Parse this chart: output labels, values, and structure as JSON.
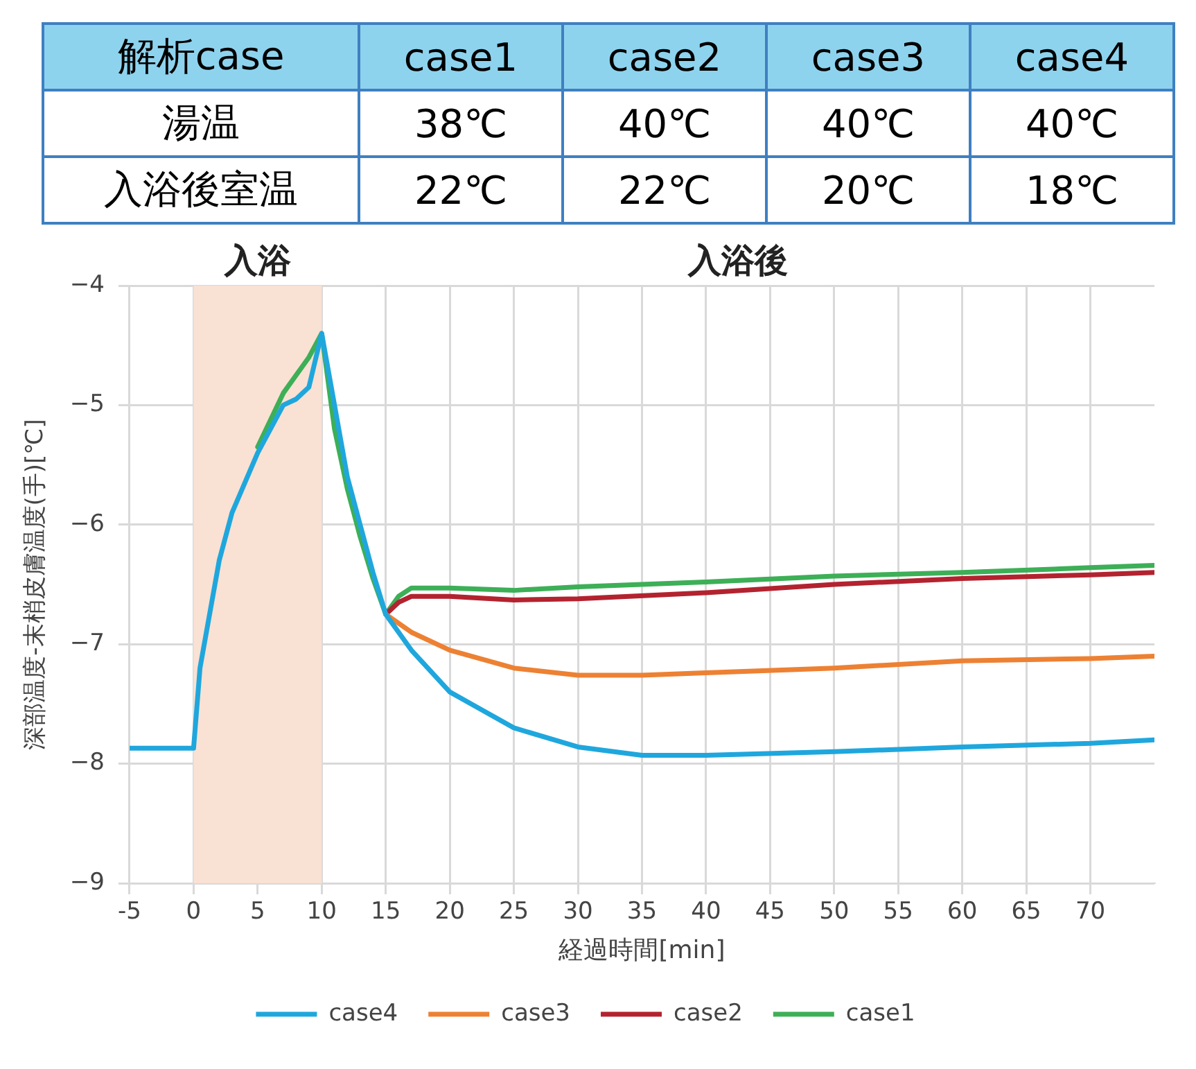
{
  "chart_data": [
    {
      "type": "other",
      "title": "解析case",
      "categories": [
        "case1",
        "case2",
        "case3",
        "case4"
      ],
      "y_categories": [
        "湯温",
        "入浴後室温"
      ],
      "cell_labels": [
        [
          "38℃",
          "40℃",
          "40℃",
          "40℃"
        ],
        [
          "22℃",
          "22℃",
          "20℃",
          "18℃"
        ]
      ]
    },
    {
      "type": "line",
      "xlabel": "経過時間[min]",
      "ylabel": "深部温度-末梢皮膚温度(手)[℃]",
      "xlim": [
        -5,
        75
      ],
      "xticks": [
        -5,
        0,
        5,
        10,
        15,
        20,
        25,
        30,
        35,
        40,
        45,
        50,
        55,
        60,
        65,
        70
      ],
      "ylim": [
        -9,
        -4
      ],
      "yticks": [
        {
          "value": -9,
          "label": "−9"
        },
        {
          "value": -8,
          "label": "−8"
        },
        {
          "value": -7,
          "label": "−7"
        },
        {
          "value": -6,
          "label": "−6"
        },
        {
          "value": -5,
          "label": "−5"
        },
        {
          "value": -4,
          "label": "−4"
        }
      ],
      "grid": true,
      "legend": "bottom",
      "marker": "none",
      "line_style": "solid",
      "bands": [
        {
          "axis": "x",
          "from": 0,
          "to": 10,
          "label": "入浴",
          "color": "#f9e1d3"
        }
      ],
      "annotations": [
        "入浴後"
      ],
      "series": [
        {
          "name": "case1",
          "color": "#3daf57",
          "x": [
            5,
            7,
            8,
            9,
            10,
            11,
            12,
            13,
            14,
            15,
            16,
            17,
            20,
            25,
            30,
            40,
            50,
            60,
            70,
            75
          ],
          "values": [
            -5.35,
            -4.9,
            -4.75,
            -4.6,
            -4.4,
            -5.2,
            -5.7,
            -6.1,
            -6.45,
            -6.75,
            -6.6,
            -6.53,
            -6.53,
            -6.55,
            -6.52,
            -6.48,
            -6.43,
            -6.4,
            -6.36,
            -6.34
          ]
        },
        {
          "name": "case2",
          "color": "#b3232f",
          "x": [
            15,
            16,
            17,
            20,
            25,
            30,
            40,
            50,
            60,
            70,
            75
          ],
          "values": [
            -6.75,
            -6.65,
            -6.6,
            -6.6,
            -6.63,
            -6.62,
            -6.57,
            -6.5,
            -6.45,
            -6.42,
            -6.4
          ]
        },
        {
          "name": "case3",
          "color": "#ed8133",
          "x": [
            15,
            17,
            20,
            25,
            30,
            35,
            40,
            50,
            60,
            70,
            75
          ],
          "values": [
            -6.75,
            -6.9,
            -7.05,
            -7.2,
            -7.26,
            -7.26,
            -7.24,
            -7.2,
            -7.14,
            -7.12,
            -7.1
          ]
        },
        {
          "name": "case4",
          "color": "#1fa7dd",
          "x": [
            -5,
            0,
            0.5,
            1,
            2,
            3,
            5,
            7,
            8,
            9,
            10,
            11,
            12,
            13,
            14,
            15,
            17,
            20,
            25,
            30,
            35,
            40,
            50,
            60,
            70,
            75
          ],
          "values": [
            -7.87,
            -7.87,
            -7.2,
            -6.9,
            -6.3,
            -5.9,
            -5.4,
            -5.0,
            -4.95,
            -4.85,
            -4.4,
            -5.0,
            -5.6,
            -6.0,
            -6.4,
            -6.75,
            -7.05,
            -7.4,
            -7.7,
            -7.86,
            -7.93,
            -7.93,
            -7.9,
            -7.86,
            -7.83,
            -7.8
          ]
        }
      ]
    }
  ]
}
